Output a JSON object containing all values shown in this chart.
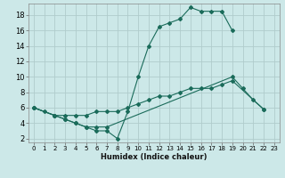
{
  "title": "",
  "xlabel": "Humidex (Indice chaleur)",
  "background_color": "#cce8e8",
  "grid_color": "#b0cccc",
  "line_color": "#1a6b5a",
  "xlim": [
    -0.5,
    23.5
  ],
  "ylim": [
    1.5,
    19.5
  ],
  "x_ticks": [
    0,
    1,
    2,
    3,
    4,
    5,
    6,
    7,
    8,
    9,
    10,
    11,
    12,
    13,
    14,
    15,
    16,
    17,
    18,
    19,
    20,
    21,
    22,
    23
  ],
  "y_ticks": [
    2,
    4,
    6,
    8,
    10,
    12,
    14,
    16,
    18
  ],
  "line1_x": [
    0,
    1,
    2,
    3,
    4,
    5,
    6,
    7,
    8,
    9,
    10,
    11,
    12,
    13,
    14,
    15,
    16,
    17,
    18,
    19
  ],
  "line1_y": [
    6,
    5.5,
    5,
    4.5,
    4,
    3.5,
    3,
    3,
    2,
    5.5,
    10,
    14,
    16.5,
    17,
    17.5,
    19,
    18.5,
    18.5,
    18.5,
    16
  ],
  "line2_x": [
    0,
    2,
    3,
    4,
    5,
    6,
    7,
    19,
    20,
    21,
    22
  ],
  "line2_y": [
    6,
    5,
    4.5,
    4,
    3.5,
    3.5,
    3.5,
    10,
    8.5,
    7,
    5.8
  ],
  "line3_x": [
    0,
    2,
    3,
    4,
    5,
    6,
    7,
    8,
    9,
    10,
    11,
    12,
    13,
    14,
    15,
    16,
    17,
    18,
    19,
    22
  ],
  "line3_y": [
    6,
    5,
    5,
    5,
    5,
    5.5,
    5.5,
    5.5,
    6,
    6.5,
    7,
    7.5,
    7.5,
    8,
    8.5,
    8.5,
    8.5,
    9,
    9.5,
    5.8
  ]
}
